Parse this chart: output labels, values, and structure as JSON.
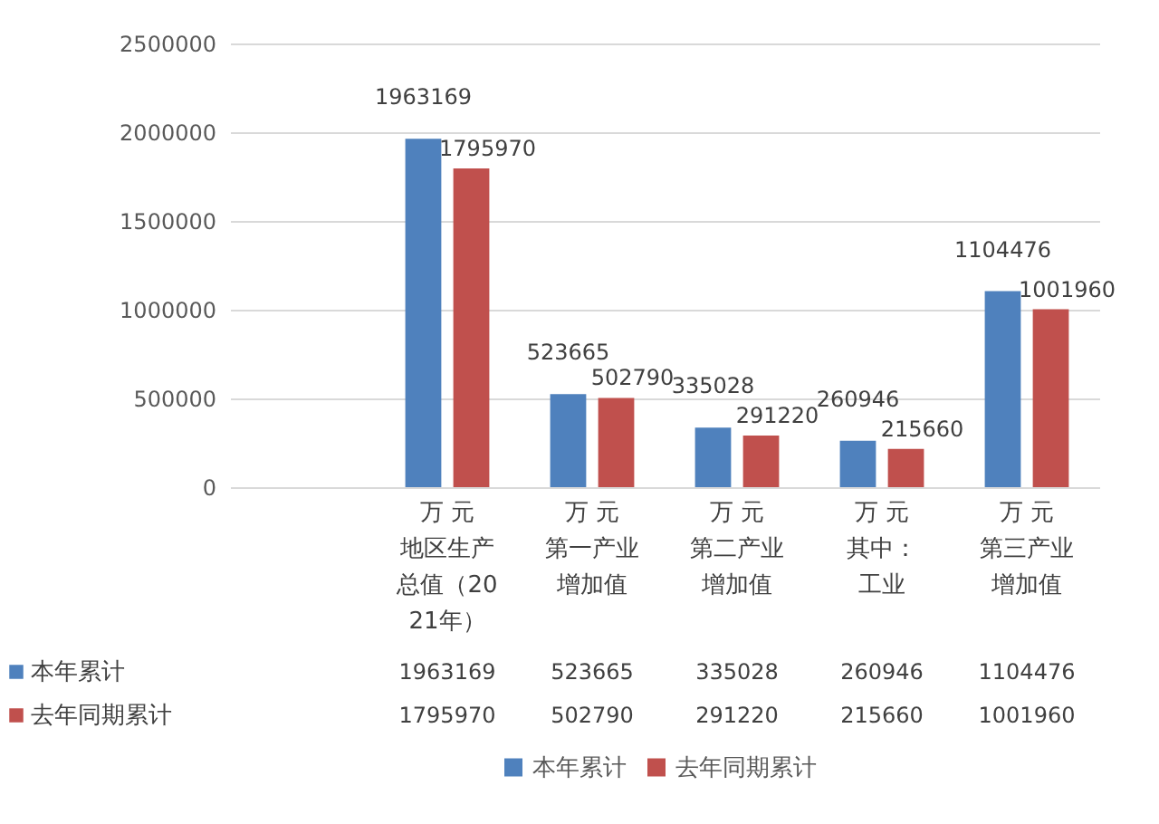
{
  "chart_data": {
    "type": "bar",
    "categories": [
      null,
      "万 元地区生产总值（2021年）",
      "万 元第一产业增加值",
      "万 元第二产业增加值",
      "万 元其中：工业",
      "万 元第三产业增加值"
    ],
    "series": [
      {
        "name": "本年累计",
        "color": "#4f81bd",
        "values": [
          null,
          1963169,
          523665,
          335028,
          260946,
          1104476
        ],
        "value_labels": [
          null,
          "1963169",
          "523665",
          "335028",
          "260946",
          "1104476"
        ]
      },
      {
        "name": "去年同期累计",
        "color": "#c0504d",
        "values": [
          null,
          1795970,
          502790,
          291220,
          215660,
          1001960
        ],
        "value_labels": [
          null,
          "1795970",
          "502790",
          "291220",
          "215660",
          "1001960"
        ]
      }
    ],
    "ylim": [
      0,
      2500000
    ],
    "yticks": [
      0,
      500000,
      1000000,
      1500000,
      2000000,
      2500000
    ],
    "grid": "y",
    "legend": "bottom",
    "data_labels": true
  }
}
